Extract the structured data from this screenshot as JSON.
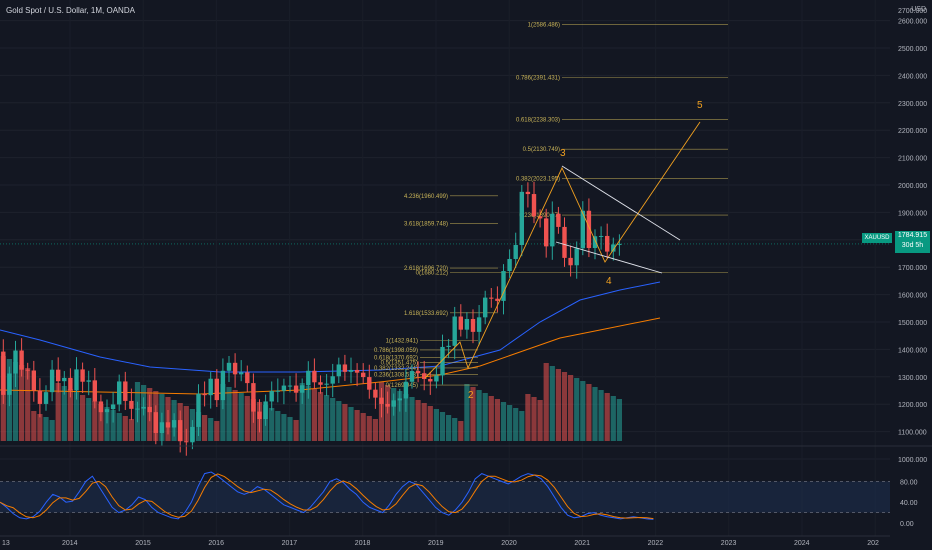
{
  "header": {
    "title": "Gold Spot / U.S. Dollar, 1M, OANDA",
    "currency": "USD"
  },
  "ticker": {
    "symbol": "XAUUSD",
    "price": "1784.915",
    "countdown": "30d 5h"
  },
  "chart_data": {
    "type": "candlestick",
    "x_ticks": [
      "13",
      "2014",
      "2015",
      "2016",
      "2017",
      "2018",
      "2019",
      "2020",
      "2021",
      "2022",
      "2023",
      "2024",
      "202"
    ],
    "y_ticks": [
      "2700.000",
      "2600.000",
      "2500.000",
      "2400.000",
      "2300.000",
      "2200.000",
      "2100.000",
      "2000.000",
      "1900.000",
      "1800.000",
      "1700.000",
      "1600.000",
      "1500.000",
      "1400.000",
      "1300.000",
      "1200.000",
      "1100.000",
      "1000.000"
    ],
    "ylim": [
      950,
      2700
    ],
    "fib_levels": [
      {
        "label": "1(2586.486)",
        "value": 2586.486
      },
      {
        "label": "0.786(2391.431)",
        "value": 2391.431
      },
      {
        "label": "0.618(2238.303)",
        "value": 2238.303
      },
      {
        "label": "0.5(2130.749)",
        "value": 2130.749
      },
      {
        "label": "0.382(2023.195)",
        "value": 2023.195
      },
      {
        "label": "0.236(1890.17)",
        "value": 1890.17
      },
      {
        "label": "4.236(1960.499)",
        "value": 1960.499
      },
      {
        "label": "3.618(1859.748)",
        "value": 1859.748
      },
      {
        "label": "2.618(1696.720)",
        "value": 1696.72
      },
      {
        "label": "0(1680.212)",
        "value": 1680.212
      },
      {
        "label": "1.618(1533.692)",
        "value": 1533.692
      },
      {
        "label": "1(1432.941)",
        "value": 1432.941
      },
      {
        "label": "0.786(1398.059)",
        "value": 1398.059
      },
      {
        "label": "0.618(1370.692)",
        "value": 1370.692
      },
      {
        "label": "0.5(1351.475)",
        "value": 1351.475
      },
      {
        "label": "0.382(1332.244)",
        "value": 1332.244
      },
      {
        "label": "0.236(1308.513)",
        "value": 1308.513
      },
      {
        "label": "0(1269.945)",
        "value": 1269.945
      }
    ],
    "wave_labels": [
      "2",
      "3",
      "4",
      "5"
    ],
    "stoch_ticks": [
      "80.00",
      "40.00",
      "0.00"
    ],
    "stoch_levels": [
      80,
      20
    ],
    "colors": {
      "up": "#26a69a",
      "down": "#ef5350",
      "ma_fast": "#2962ff",
      "ma_slow": "#f57c00",
      "fib": "#c9b458",
      "wave": "#f0a020",
      "channel": "#e0e3eb"
    }
  }
}
